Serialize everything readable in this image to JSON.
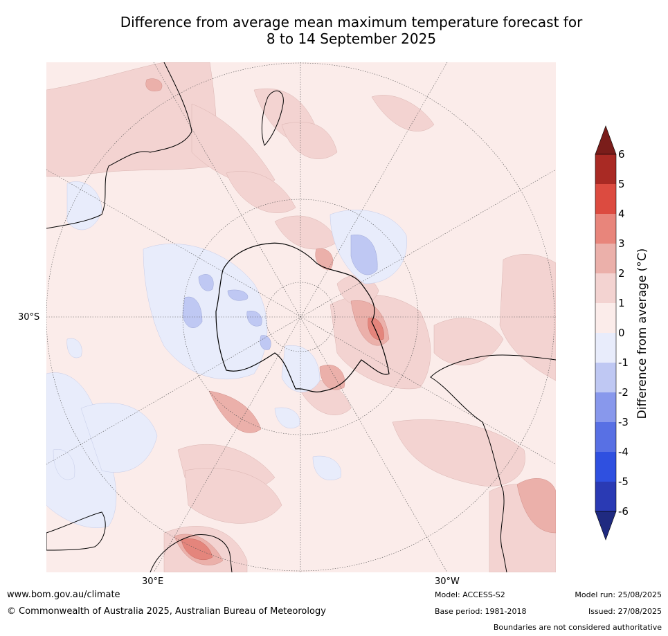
{
  "title_line1": "Difference from average mean maximum temperature forecast for",
  "title_line2": "8 to 14 September 2025",
  "map": {
    "lat_label": "30°S",
    "lon_label_east": "30°E",
    "lon_label_west": "30°W",
    "colors": {
      "ocean_neutral": "#fbecea",
      "warm_0_1": "#fbecea",
      "warm_1_2": "#f3d3d1",
      "warm_2_3": "#ebb0aa",
      "warm_3_4": "#e4857c",
      "cool_0_1": "#e8ecfb",
      "cool_1_2": "#bfc8f3"
    }
  },
  "colorbar": {
    "title": "Difference from average (°C)",
    "ticks": [
      "6",
      "5",
      "4",
      "3",
      "2",
      "1",
      "0",
      "-1",
      "-2",
      "-3",
      "-4",
      "-5",
      "-6"
    ],
    "colors": [
      "#7a1d1a",
      "#a92a24",
      "#dc4b40",
      "#e8857b",
      "#ebb0aa",
      "#f3d3d1",
      "#fbecea",
      "#e8ecfb",
      "#bfc8f3",
      "#8898ec",
      "#5870e4",
      "#2f50e0",
      "#2a3ab4",
      "#1f2a80"
    ]
  },
  "footer": {
    "website": "www.bom.gov.au/climate",
    "copyright": "© Commonwealth of Australia 2025, Australian Bureau of Meteorology",
    "model": "Model: ACCESS-S2",
    "base_period": "Base period: 1981-2018",
    "model_run": "Model run: 25/08/2025",
    "issued": "Issued: 27/08/2025",
    "disclaimer": "Boundaries are not considered authoritative"
  }
}
